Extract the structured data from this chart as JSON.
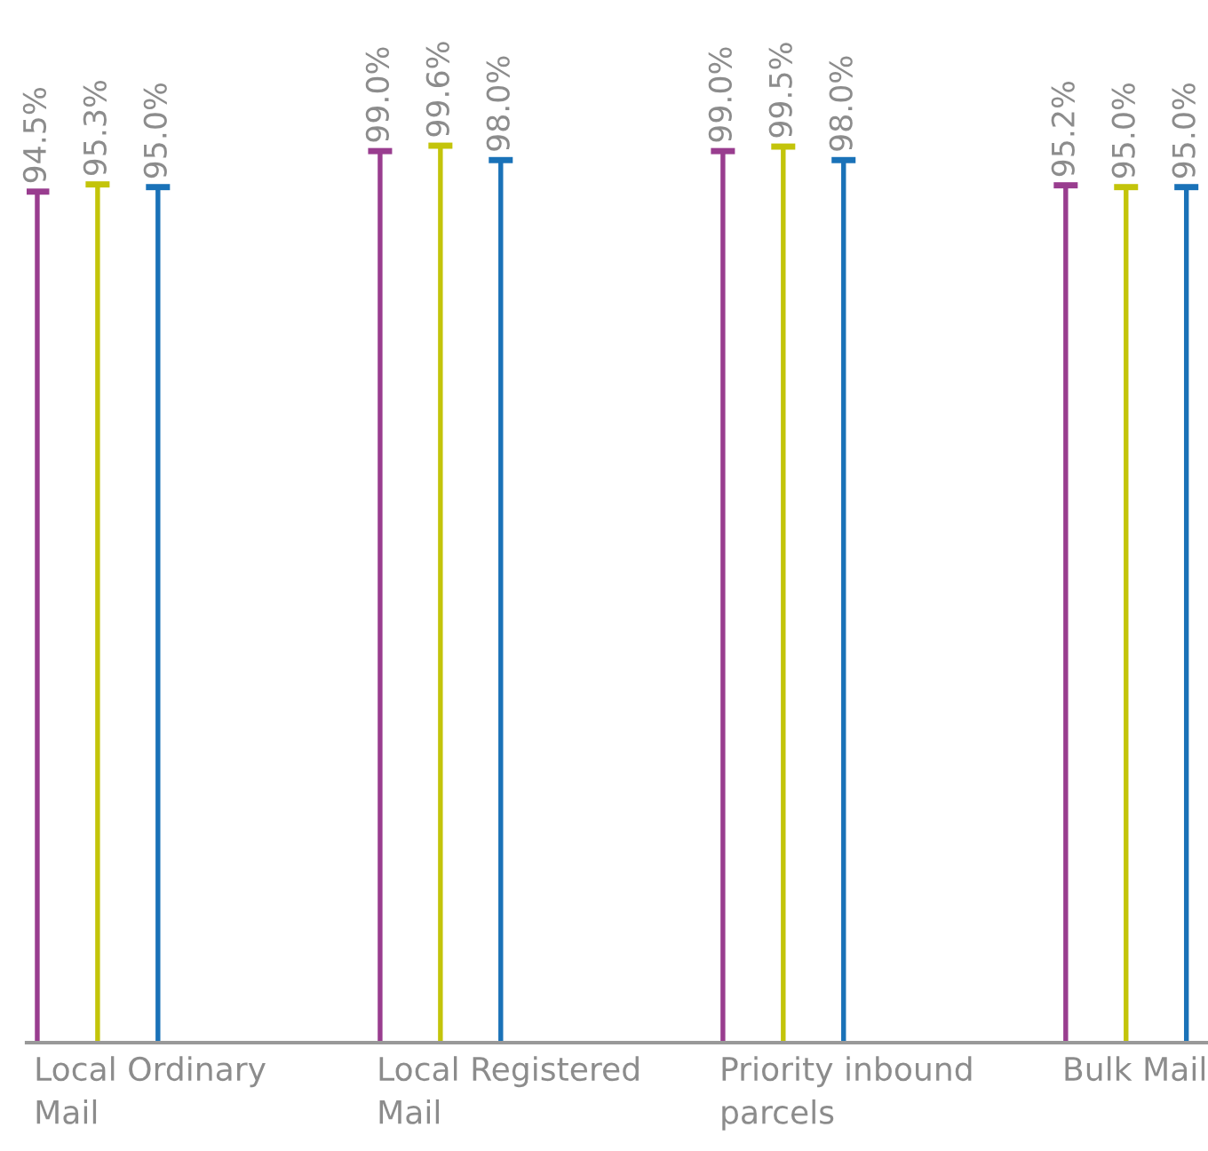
{
  "chart_data": {
    "type": "bar",
    "categories": [
      "Local Ordinary\nMail",
      "Local Registered\nMail",
      "Priority inbound\nparcels",
      "Bulk Mail"
    ],
    "tick_labels": "x",
    "series": [
      {
        "color": "#993d8f",
        "values": [
          94.5,
          99.0,
          99.0,
          95.2
        ],
        "value_labels": [
          "94.5%",
          "99.0%",
          "99.0%",
          "95.2%"
        ]
      },
      {
        "color": "#c3c40a",
        "values": [
          95.3,
          99.6,
          99.5,
          95.0
        ],
        "value_labels": [
          "95.3%",
          "99.6%",
          "99.5%",
          "95.0%"
        ]
      },
      {
        "color": "#1a72b8",
        "values": [
          95.0,
          98.0,
          98.0,
          95.0
        ],
        "value_labels": [
          "95.0%",
          "98.0%",
          "98.0%",
          "95.0%"
        ]
      }
    ]
  }
}
